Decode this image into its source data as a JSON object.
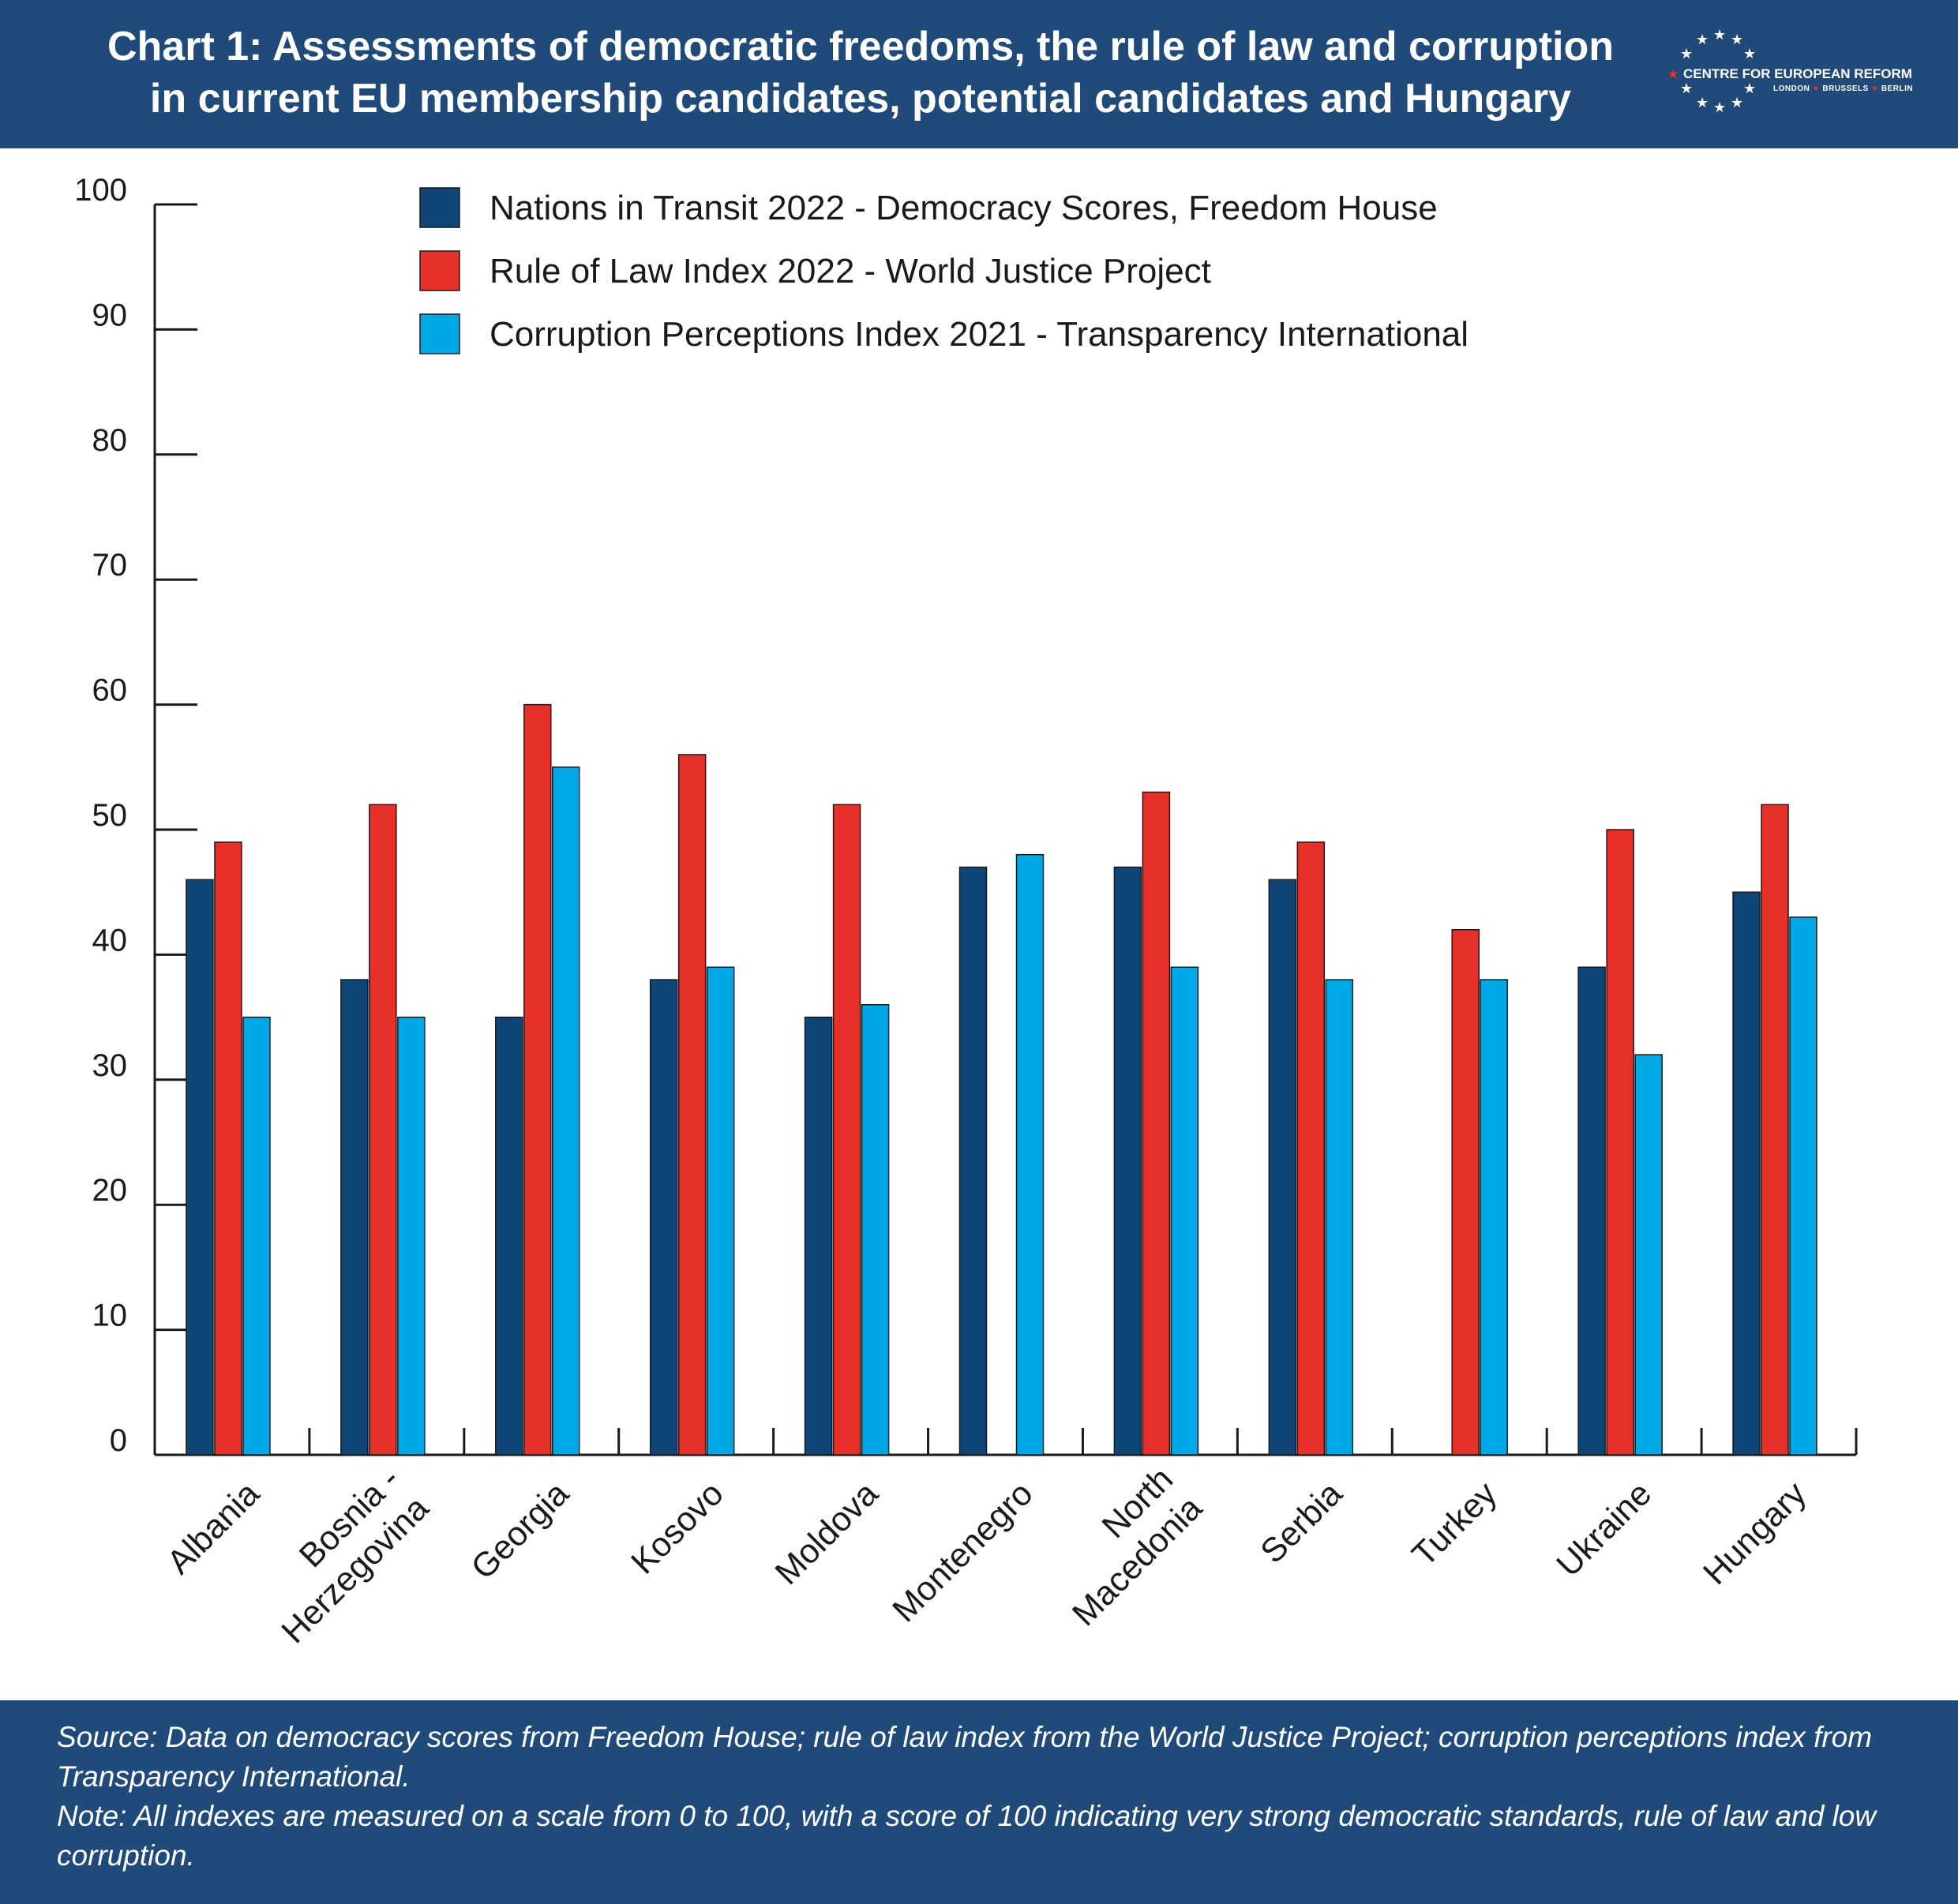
{
  "header": {
    "title_line1": "Chart 1: Assessments of democratic freedoms, the rule of law and corruption",
    "title_line2": "in current EU membership candidates, potential candidates and Hungary",
    "logo_text": "CENTRE FOR EUROPEAN REFORM",
    "logo_cities": [
      "LONDON",
      "BRUSSELS",
      "BERLIN"
    ],
    "logo_icon": "eu-stars-icon"
  },
  "colors": {
    "header_bg": "#1f4a7a",
    "series_dark": "#0f4577",
    "series_red": "#e8302a",
    "series_light": "#00a9e6"
  },
  "chart_data": {
    "type": "bar",
    "categories": [
      "Albania",
      "Bosnia - Herzegovina",
      "Georgia",
      "Kosovo",
      "Moldova",
      "Montenegro",
      "North Macedonia",
      "Serbia",
      "Turkey",
      "Ukraine",
      "Hungary"
    ],
    "category_lines": [
      [
        "Albania"
      ],
      [
        "Bosnia -",
        "Herzegovina"
      ],
      [
        "Georgia"
      ],
      [
        "Kosovo"
      ],
      [
        "Moldova"
      ],
      [
        "Montenegro"
      ],
      [
        "North",
        "Macedonia"
      ],
      [
        "Serbia"
      ],
      [
        "Turkey"
      ],
      [
        "Ukraine"
      ],
      [
        "Hungary"
      ]
    ],
    "series": [
      {
        "name": "Nations in Transit 2022 - Democracy Scores, Freedom House",
        "color": "#0f4577",
        "values": [
          46,
          38,
          35,
          38,
          35,
          47,
          47,
          46,
          null,
          39,
          45
        ]
      },
      {
        "name": "Rule of Law Index 2022 - World Justice Project",
        "color": "#e8302a",
        "values": [
          49,
          52,
          60,
          56,
          52,
          null,
          53,
          49,
          42,
          50,
          52
        ]
      },
      {
        "name": "Corruption Perceptions Index 2021 - Transparency International",
        "color": "#00a9e6",
        "values": [
          35,
          35,
          55,
          39,
          36,
          48,
          39,
          38,
          38,
          32,
          43
        ]
      }
    ],
    "ylim": [
      0,
      100
    ],
    "yticks": [
      0,
      10,
      20,
      30,
      40,
      50,
      60,
      70,
      80,
      90,
      100
    ],
    "xlabel": "",
    "ylabel": "",
    "legend_position": "top-center",
    "grid": false
  },
  "footer": {
    "source": "Source: Data on democracy scores from Freedom House; rule of law index from the World Justice Project; corruption perceptions index from Transparency International.",
    "note": "Note: All indexes are measured on a scale from 0 to 100, with a score of 100 indicating very strong democratic standards, rule of law and low corruption."
  }
}
